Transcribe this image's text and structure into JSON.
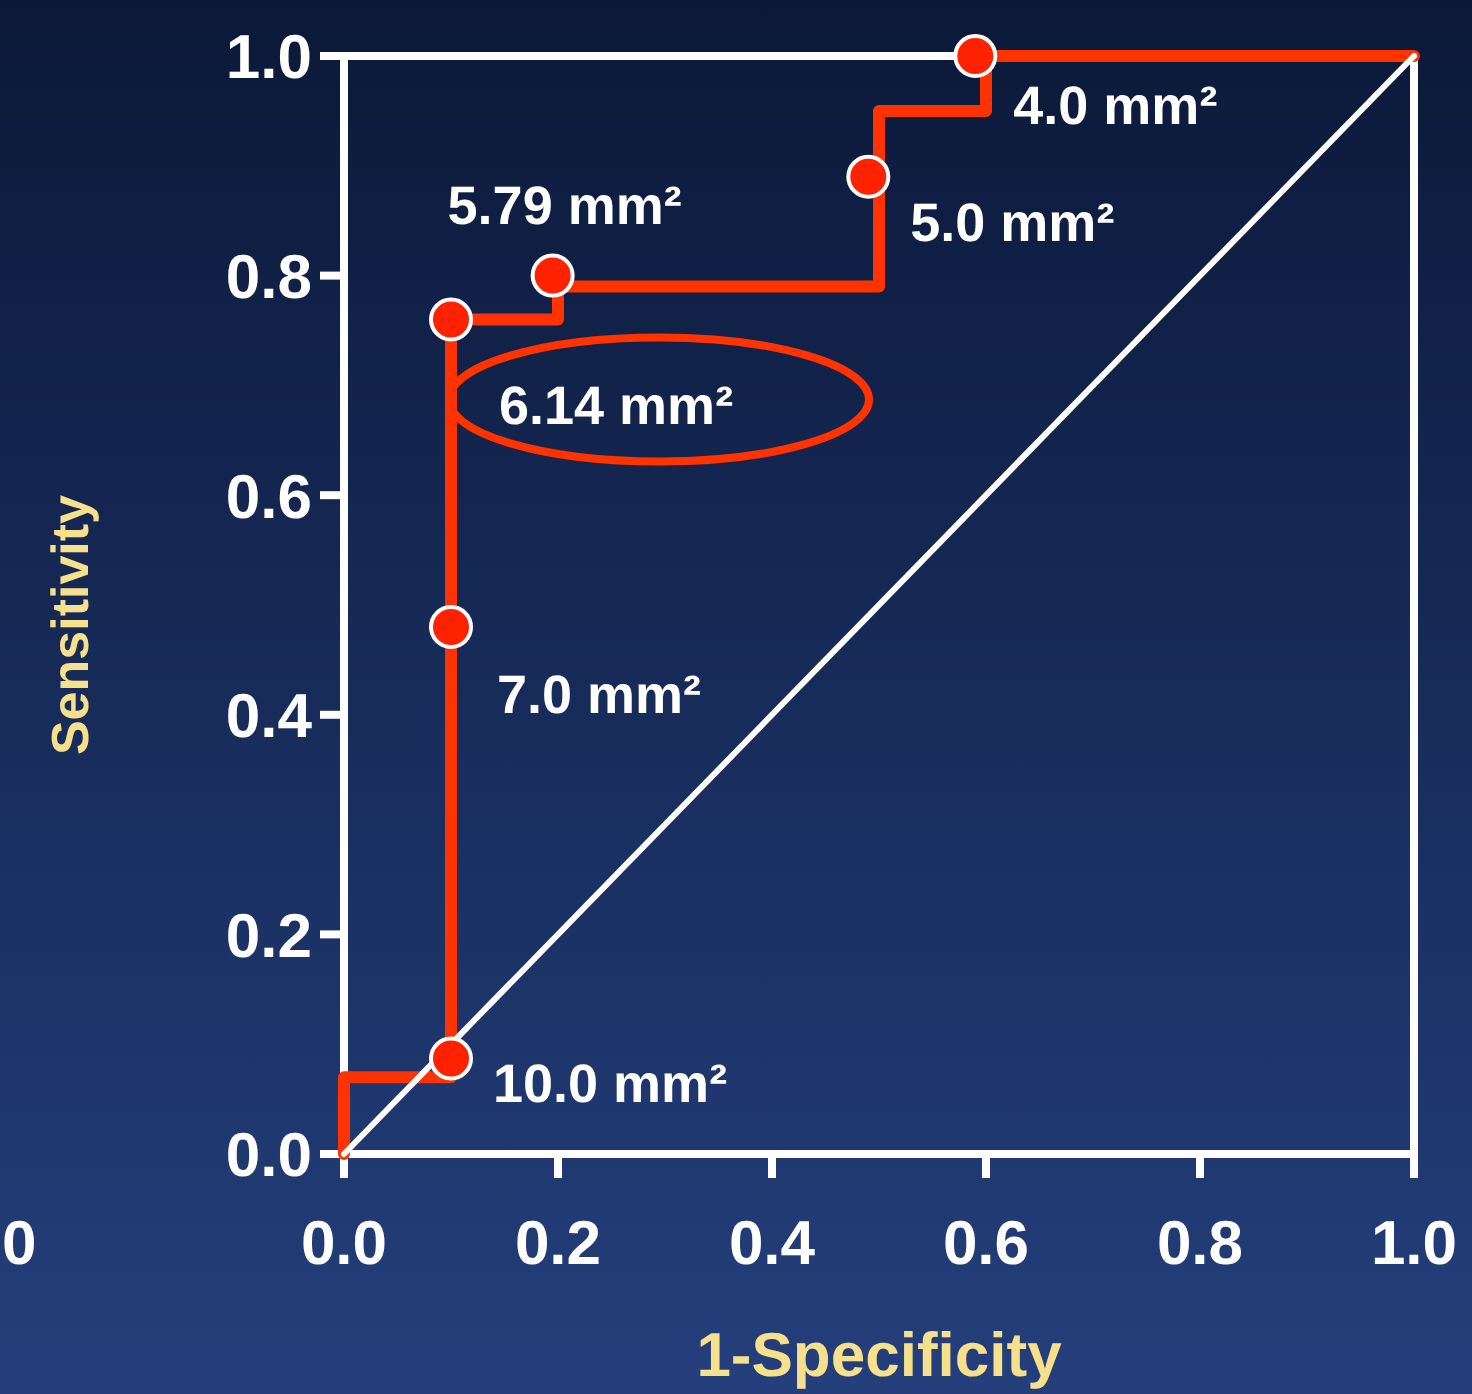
{
  "chart_data": {
    "type": "line",
    "xlabel": "1-Specificity",
    "ylabel": "Sensitivity",
    "xlim": [
      0,
      1
    ],
    "ylim": [
      0,
      1
    ],
    "xticks": [
      {
        "value": 0,
        "label": "0.0"
      },
      {
        "value": 0.2,
        "label": "0.2"
      },
      {
        "value": 0.4,
        "label": "0.4"
      },
      {
        "value": 0.6,
        "label": "0.6"
      },
      {
        "value": 0.8,
        "label": "0.8"
      },
      {
        "value": 1,
        "label": "1.0"
      }
    ],
    "yticks": [
      {
        "value": 0,
        "label": "0.0"
      },
      {
        "value": 0.2,
        "label": "0.2"
      },
      {
        "value": 0.4,
        "label": "0.4"
      },
      {
        "value": 0.6,
        "label": "0.6"
      },
      {
        "value": 0.8,
        "label": "0.8"
      },
      {
        "value": 1,
        "label": "1.0"
      }
    ],
    "grid": false,
    "series": [
      {
        "color": "#ff3300",
        "marker": "none",
        "line_style": "solid",
        "x": [
          0,
          0,
          0.1,
          0.1,
          0.2,
          0.2,
          0.5,
          0.5,
          0.6,
          0.6,
          1
        ],
        "values": [
          0,
          0.07,
          0.07,
          0.76,
          0.76,
          0.79,
          0.79,
          0.95,
          0.95,
          1,
          1
        ]
      },
      {
        "type": "line",
        "color": "#ffffff",
        "marker": "none",
        "line_style": "solid",
        "x": [
          0,
          1
        ],
        "values": [
          0,
          1
        ]
      },
      {
        "type": "scatter",
        "color": "#ff2200",
        "marker": "circle",
        "x": [
          0.1,
          0.1,
          0.1,
          0.195,
          0.49,
          0.59
        ],
        "values": [
          0.087,
          0.48,
          0.76,
          0.8,
          0.89,
          1
        ]
      }
    ],
    "annotations": [
      {
        "text": "10.0 mm²",
        "x": 0.1,
        "y": 0.087
      },
      {
        "text": "7.0 mm²",
        "x": 0.1,
        "y": 0.48
      },
      {
        "text": "6.14 mm²",
        "x": 0.1,
        "y": 0.76
      },
      {
        "text": "5.79 mm²",
        "x": 0.195,
        "y": 0.8
      },
      {
        "text": "5.0 mm²",
        "x": 0.49,
        "y": 0.89
      },
      {
        "text": "4.0 mm²",
        "x": 0.59,
        "y": 1
      },
      "0"
    ]
  }
}
